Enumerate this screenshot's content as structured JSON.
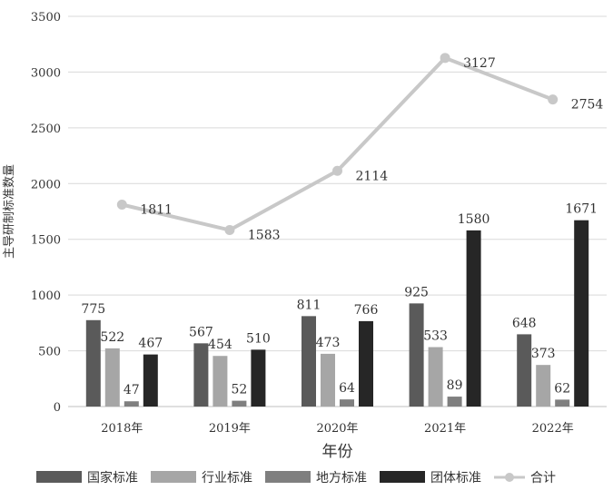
{
  "chart_data": {
    "type": "bar",
    "categories": [
      "2018年",
      "2019年",
      "2020年",
      "2021年",
      "2022年"
    ],
    "series": [
      {
        "name": "国家标准",
        "type": "bar",
        "color": "#5a5a5a",
        "values": [
          775,
          567,
          811,
          925,
          648
        ]
      },
      {
        "name": "行业标准",
        "type": "bar",
        "color": "#a6a6a6",
        "values": [
          522,
          454,
          473,
          533,
          373
        ]
      },
      {
        "name": "地方标准",
        "type": "bar",
        "color": "#7f7f7f",
        "values": [
          47,
          52,
          64,
          89,
          62
        ]
      },
      {
        "name": "团体标准",
        "type": "bar",
        "color": "#262626",
        "values": [
          467,
          510,
          766,
          1580,
          1671
        ]
      },
      {
        "name": "合计",
        "type": "line",
        "color": "#c8c8c8",
        "values": [
          1811,
          1583,
          2114,
          3127,
          2754
        ]
      }
    ],
    "xlabel": "年份",
    "ylabel": "主导研制标准数量",
    "ylim": [
      0,
      3500
    ],
    "yticks": [
      0,
      500,
      1000,
      1500,
      2000,
      2500,
      3000,
      3500
    ],
    "grid": true,
    "legend_position": "bottom"
  }
}
